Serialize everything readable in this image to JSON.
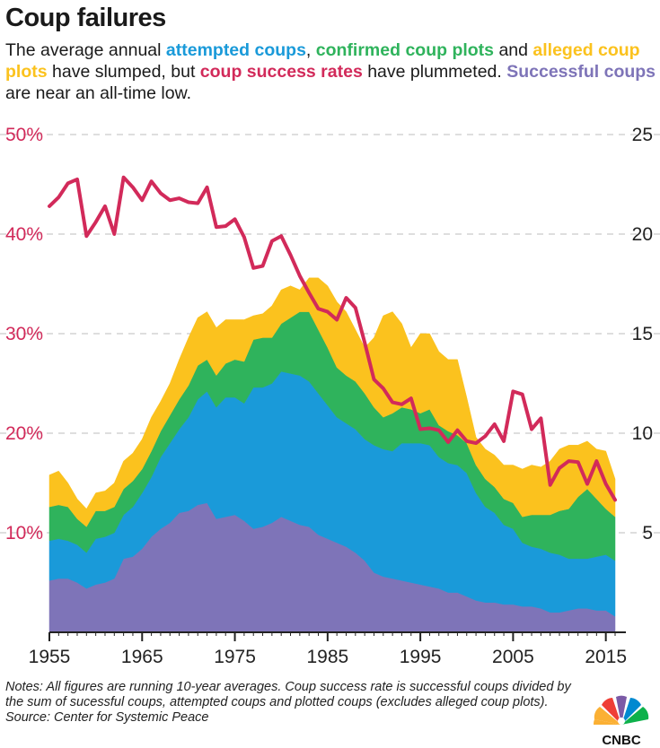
{
  "header": {
    "title": "Coup failures",
    "subtitle_parts": [
      {
        "text": "The average annual ",
        "color": "#1a1a1a",
        "bold": false
      },
      {
        "text": "attempted coups",
        "color": "#1a9ad9",
        "bold": true
      },
      {
        "text": ", ",
        "color": "#1a1a1a",
        "bold": false
      },
      {
        "text": "confirmed coup plots",
        "color": "#2fb35c",
        "bold": true
      },
      {
        "text": " and ",
        "color": "#1a1a1a",
        "bold": false
      },
      {
        "text": "alleged coup plots",
        "color": "#fbc21e",
        "bold": true
      },
      {
        "text": " have slumped, but ",
        "color": "#1a1a1a",
        "bold": false
      },
      {
        "text": "coup success rates",
        "color": "#d22a5a",
        "bold": true
      },
      {
        "text": " have plummeted. ",
        "color": "#1a1a1a",
        "bold": false
      },
      {
        "text": "Successful coups",
        "color": "#7e74b8",
        "bold": true
      },
      {
        "text": " are near an all-time low.",
        "color": "#1a1a1a",
        "bold": false
      }
    ]
  },
  "colors": {
    "successful": "#7e74b8",
    "attempted": "#1a9ad9",
    "confirmed": "#2fb35c",
    "alleged": "#fbc21e",
    "rate": "#d22a5a",
    "grid": "#bdbdbd",
    "axis": "#222222"
  },
  "chart_data": {
    "type": "area",
    "title": "Coup failures",
    "x": [
      1955,
      1956,
      1957,
      1958,
      1959,
      1960,
      1961,
      1962,
      1963,
      1964,
      1965,
      1966,
      1967,
      1968,
      1969,
      1970,
      1971,
      1972,
      1973,
      1974,
      1975,
      1976,
      1977,
      1978,
      1979,
      1980,
      1981,
      1982,
      1983,
      1984,
      1985,
      1986,
      1987,
      1988,
      1989,
      1990,
      1991,
      1992,
      1993,
      1994,
      1995,
      1996,
      1997,
      1998,
      1999,
      2000,
      2001,
      2002,
      2003,
      2004,
      2005,
      2006,
      2007,
      2008,
      2009,
      2010,
      2011,
      2012,
      2013,
      2014,
      2015,
      2016
    ],
    "xlim": [
      1955,
      2016
    ],
    "x_ticks": [
      "1955",
      "1965",
      "1975",
      "1985",
      "1995",
      "2005",
      "2015"
    ],
    "ylim_left": [
      0,
      50
    ],
    "left_ticks": [
      "10%",
      "20%",
      "30%",
      "40%",
      "50%"
    ],
    "ylim_right": [
      0,
      25
    ],
    "right_ticks": [
      "5",
      "10",
      "15",
      "20",
      "25"
    ],
    "stack_order": [
      "Successful coups",
      "Attempted coups",
      "Confirmed coup plots",
      "Alleged coup plots"
    ],
    "series": [
      {
        "name": "Successful coups",
        "key": "successful",
        "axis": "right",
        "stacked": true,
        "values": [
          2.6,
          2.7,
          2.7,
          2.5,
          2.2,
          2.4,
          2.5,
          2.7,
          3.7,
          3.8,
          4.2,
          4.8,
          5.2,
          5.5,
          6.0,
          6.1,
          6.4,
          6.5,
          5.7,
          5.8,
          5.9,
          5.6,
          5.2,
          5.3,
          5.5,
          5.8,
          5.6,
          5.4,
          5.3,
          4.9,
          4.7,
          4.5,
          4.3,
          4.0,
          3.6,
          3.0,
          2.8,
          2.7,
          2.6,
          2.5,
          2.4,
          2.3,
          2.2,
          2.0,
          2.0,
          1.8,
          1.6,
          1.5,
          1.5,
          1.4,
          1.4,
          1.3,
          1.3,
          1.2,
          1.0,
          1.0,
          1.1,
          1.2,
          1.2,
          1.1,
          1.1,
          0.8
        ]
      },
      {
        "name": "Attempted coups",
        "key": "attempted",
        "axis": "right",
        "stacked": true,
        "values": [
          2.0,
          2.0,
          1.9,
          1.9,
          1.8,
          2.3,
          2.3,
          2.3,
          2.2,
          2.5,
          2.8,
          3.0,
          3.6,
          4.0,
          4.2,
          4.7,
          5.3,
          5.6,
          5.6,
          6.0,
          5.9,
          5.9,
          7.1,
          7.0,
          7.0,
          7.3,
          7.4,
          7.5,
          7.3,
          7.1,
          6.7,
          6.3,
          6.2,
          6.2,
          6.1,
          6.4,
          6.4,
          6.4,
          6.9,
          7.0,
          7.1,
          7.1,
          6.6,
          6.5,
          6.4,
          6.2,
          5.4,
          4.8,
          4.5,
          4.0,
          3.8,
          3.2,
          3.0,
          3.0,
          3.0,
          2.9,
          2.6,
          2.5,
          2.5,
          2.7,
          2.8,
          2.8
        ]
      },
      {
        "name": "Confirmed coup plots",
        "key": "confirmed",
        "axis": "right",
        "stacked": true,
        "values": [
          1.7,
          1.7,
          1.7,
          1.3,
          1.3,
          1.4,
          1.3,
          1.3,
          1.3,
          1.3,
          1.2,
          1.3,
          1.3,
          1.4,
          1.5,
          1.6,
          1.7,
          1.6,
          1.6,
          1.7,
          1.9,
          2.1,
          2.4,
          2.5,
          2.3,
          2.4,
          2.8,
          3.2,
          3.5,
          3.2,
          2.9,
          2.5,
          2.4,
          2.4,
          2.3,
          1.9,
          1.6,
          1.9,
          1.8,
          1.7,
          1.5,
          1.8,
          1.6,
          1.6,
          1.5,
          1.5,
          1.4,
          1.4,
          1.3,
          1.3,
          1.3,
          1.3,
          1.6,
          1.7,
          1.9,
          2.2,
          2.5,
          3.1,
          3.5,
          2.9,
          2.3,
          2.2
        ]
      },
      {
        "name": "Alleged coup plots",
        "key": "alleged",
        "axis": "right",
        "stacked": true,
        "values": [
          1.6,
          1.7,
          1.2,
          1.0,
          0.9,
          0.9,
          1.0,
          1.2,
          1.4,
          1.4,
          1.5,
          1.7,
          1.5,
          1.6,
          2.0,
          2.4,
          2.4,
          2.4,
          2.4,
          2.2,
          2.0,
          2.1,
          1.2,
          1.2,
          1.6,
          1.7,
          1.6,
          1.1,
          1.7,
          2.6,
          3.1,
          3.3,
          3.2,
          2.6,
          2.3,
          3.5,
          5.1,
          5.1,
          4.2,
          3.1,
          4.0,
          3.8,
          3.7,
          3.6,
          3.8,
          2.3,
          1.4,
          1.5,
          1.6,
          1.7,
          1.9,
          2.4,
          2.5,
          2.4,
          2.7,
          3.1,
          3.2,
          2.6,
          2.4,
          2.5,
          2.9,
          1.9
        ]
      },
      {
        "name": "Coup success rate",
        "key": "rate",
        "axis": "left",
        "stacked": false,
        "values": [
          42.8,
          43.7,
          45.1,
          45.5,
          39.8,
          41.2,
          42.8,
          40.0,
          45.7,
          44.7,
          43.4,
          45.3,
          44.1,
          43.4,
          43.6,
          43.2,
          43.1,
          44.7,
          40.7,
          40.8,
          41.5,
          39.7,
          36.6,
          36.8,
          39.3,
          39.8,
          37.9,
          35.8,
          34.1,
          32.5,
          32.2,
          31.4,
          33.6,
          32.6,
          29.1,
          25.4,
          24.5,
          23.1,
          22.9,
          23.5,
          20.4,
          20.5,
          20.3,
          19.1,
          20.3,
          19.2,
          19.0,
          19.7,
          20.9,
          19.2,
          24.2,
          23.9,
          20.4,
          21.5,
          14.8,
          16.5,
          17.2,
          17.1,
          14.9,
          17.2,
          14.9,
          13.3
        ]
      }
    ]
  },
  "notes": {
    "text": "Notes: All figures are running 10-year averages. Coup success rate is successful coups divided by the sum of sucessful coups, attempted coups and plotted coups (excludes alleged coup plots).",
    "source": "Source: Center for Systemic Peace"
  },
  "logo": {
    "text": "CNBC"
  }
}
